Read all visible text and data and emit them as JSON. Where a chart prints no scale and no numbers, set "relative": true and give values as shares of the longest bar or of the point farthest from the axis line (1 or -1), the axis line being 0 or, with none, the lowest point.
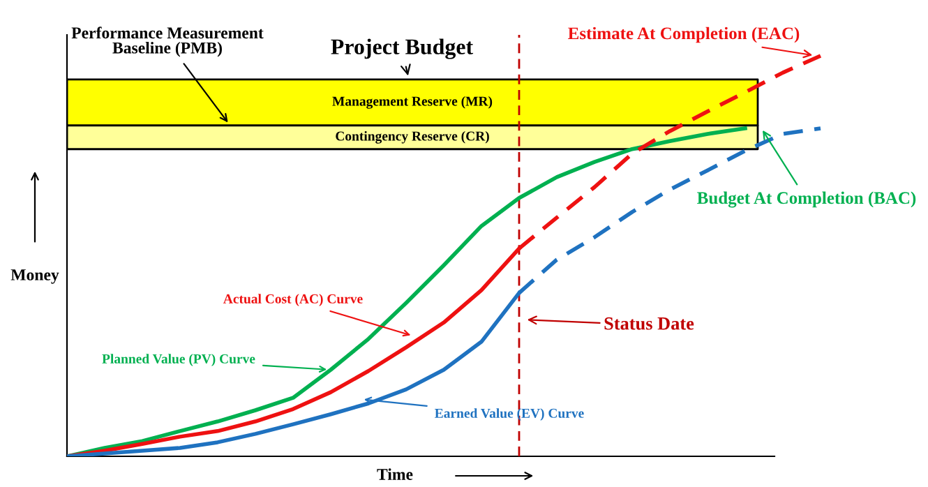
{
  "chart_data": {
    "type": "line",
    "relative": true,
    "xlabel": "Time",
    "ylabel": "Money",
    "grid": false,
    "legend": false,
    "marker": "none",
    "categories": [
      null,
      null,
      null,
      null,
      null,
      null,
      null,
      null,
      null,
      null,
      null,
      null,
      null,
      null,
      null,
      null,
      null,
      null,
      null,
      null,
      null
    ],
    "series": [
      {
        "color": "#00b050",
        "line_style": "solid",
        "values": [
          0,
          0.021,
          0.038,
          0.063,
          0.087,
          0.115,
          0.146,
          0.216,
          0.293,
          0.383,
          0.477,
          0.575,
          0.645,
          0.697,
          0.735,
          0.767,
          0.787,
          0.805,
          0.819,
          null,
          null
        ]
      },
      {
        "color": "#ee1111",
        "line_style": "solid",
        "values": [
          0,
          0.014,
          0.031,
          0.049,
          0.063,
          0.087,
          0.118,
          0.16,
          0.213,
          0.272,
          0.334,
          0.415,
          0.519,
          null,
          null,
          null,
          null,
          null,
          null,
          null,
          null
        ]
      },
      {
        "color": "#ee1111",
        "line_style": "dashed",
        "values": [
          null,
          null,
          null,
          null,
          null,
          null,
          null,
          null,
          null,
          null,
          null,
          null,
          0.519,
          0.596,
          0.672,
          0.756,
          0.812,
          0.861,
          0.909,
          0.958,
          1
        ]
      },
      {
        "color": "#1f72c0",
        "line_style": "solid",
        "values": [
          0,
          0.007,
          0.014,
          0.021,
          0.035,
          0.056,
          0.08,
          0.105,
          0.132,
          0.167,
          0.216,
          0.286,
          0.408,
          null,
          null,
          null,
          null,
          null,
          null,
          null,
          null
        ]
      },
      {
        "color": "#1f72c0",
        "line_style": "dashed",
        "values": [
          null,
          null,
          null,
          null,
          null,
          null,
          null,
          null,
          null,
          null,
          null,
          null,
          0.408,
          0.491,
          0.547,
          0.61,
          0.666,
          0.714,
          0.763,
          0.805,
          0.819
        ]
      }
    ],
    "bands": [
      {
        "axis": "y",
        "from": 0.826,
        "to": 0.941,
        "label": "Management Reserve (MR)",
        "color": "#ffff00"
      },
      {
        "axis": "y",
        "from": 0.767,
        "to": 0.826,
        "label": "Contingency Reserve (CR)",
        "color": "#ffff99"
      }
    ],
    "annotations": [
      "Performance Measurement\nBaseline (PMB)",
      "Project Budget",
      "Estimate At Completion (EAC)",
      "Budget At Completion (BAC)",
      "Actual Cost (AC) Curve",
      "Planned Value (PV) Curve",
      "Earned Value (EV) Curve",
      "Status Date"
    ]
  }
}
